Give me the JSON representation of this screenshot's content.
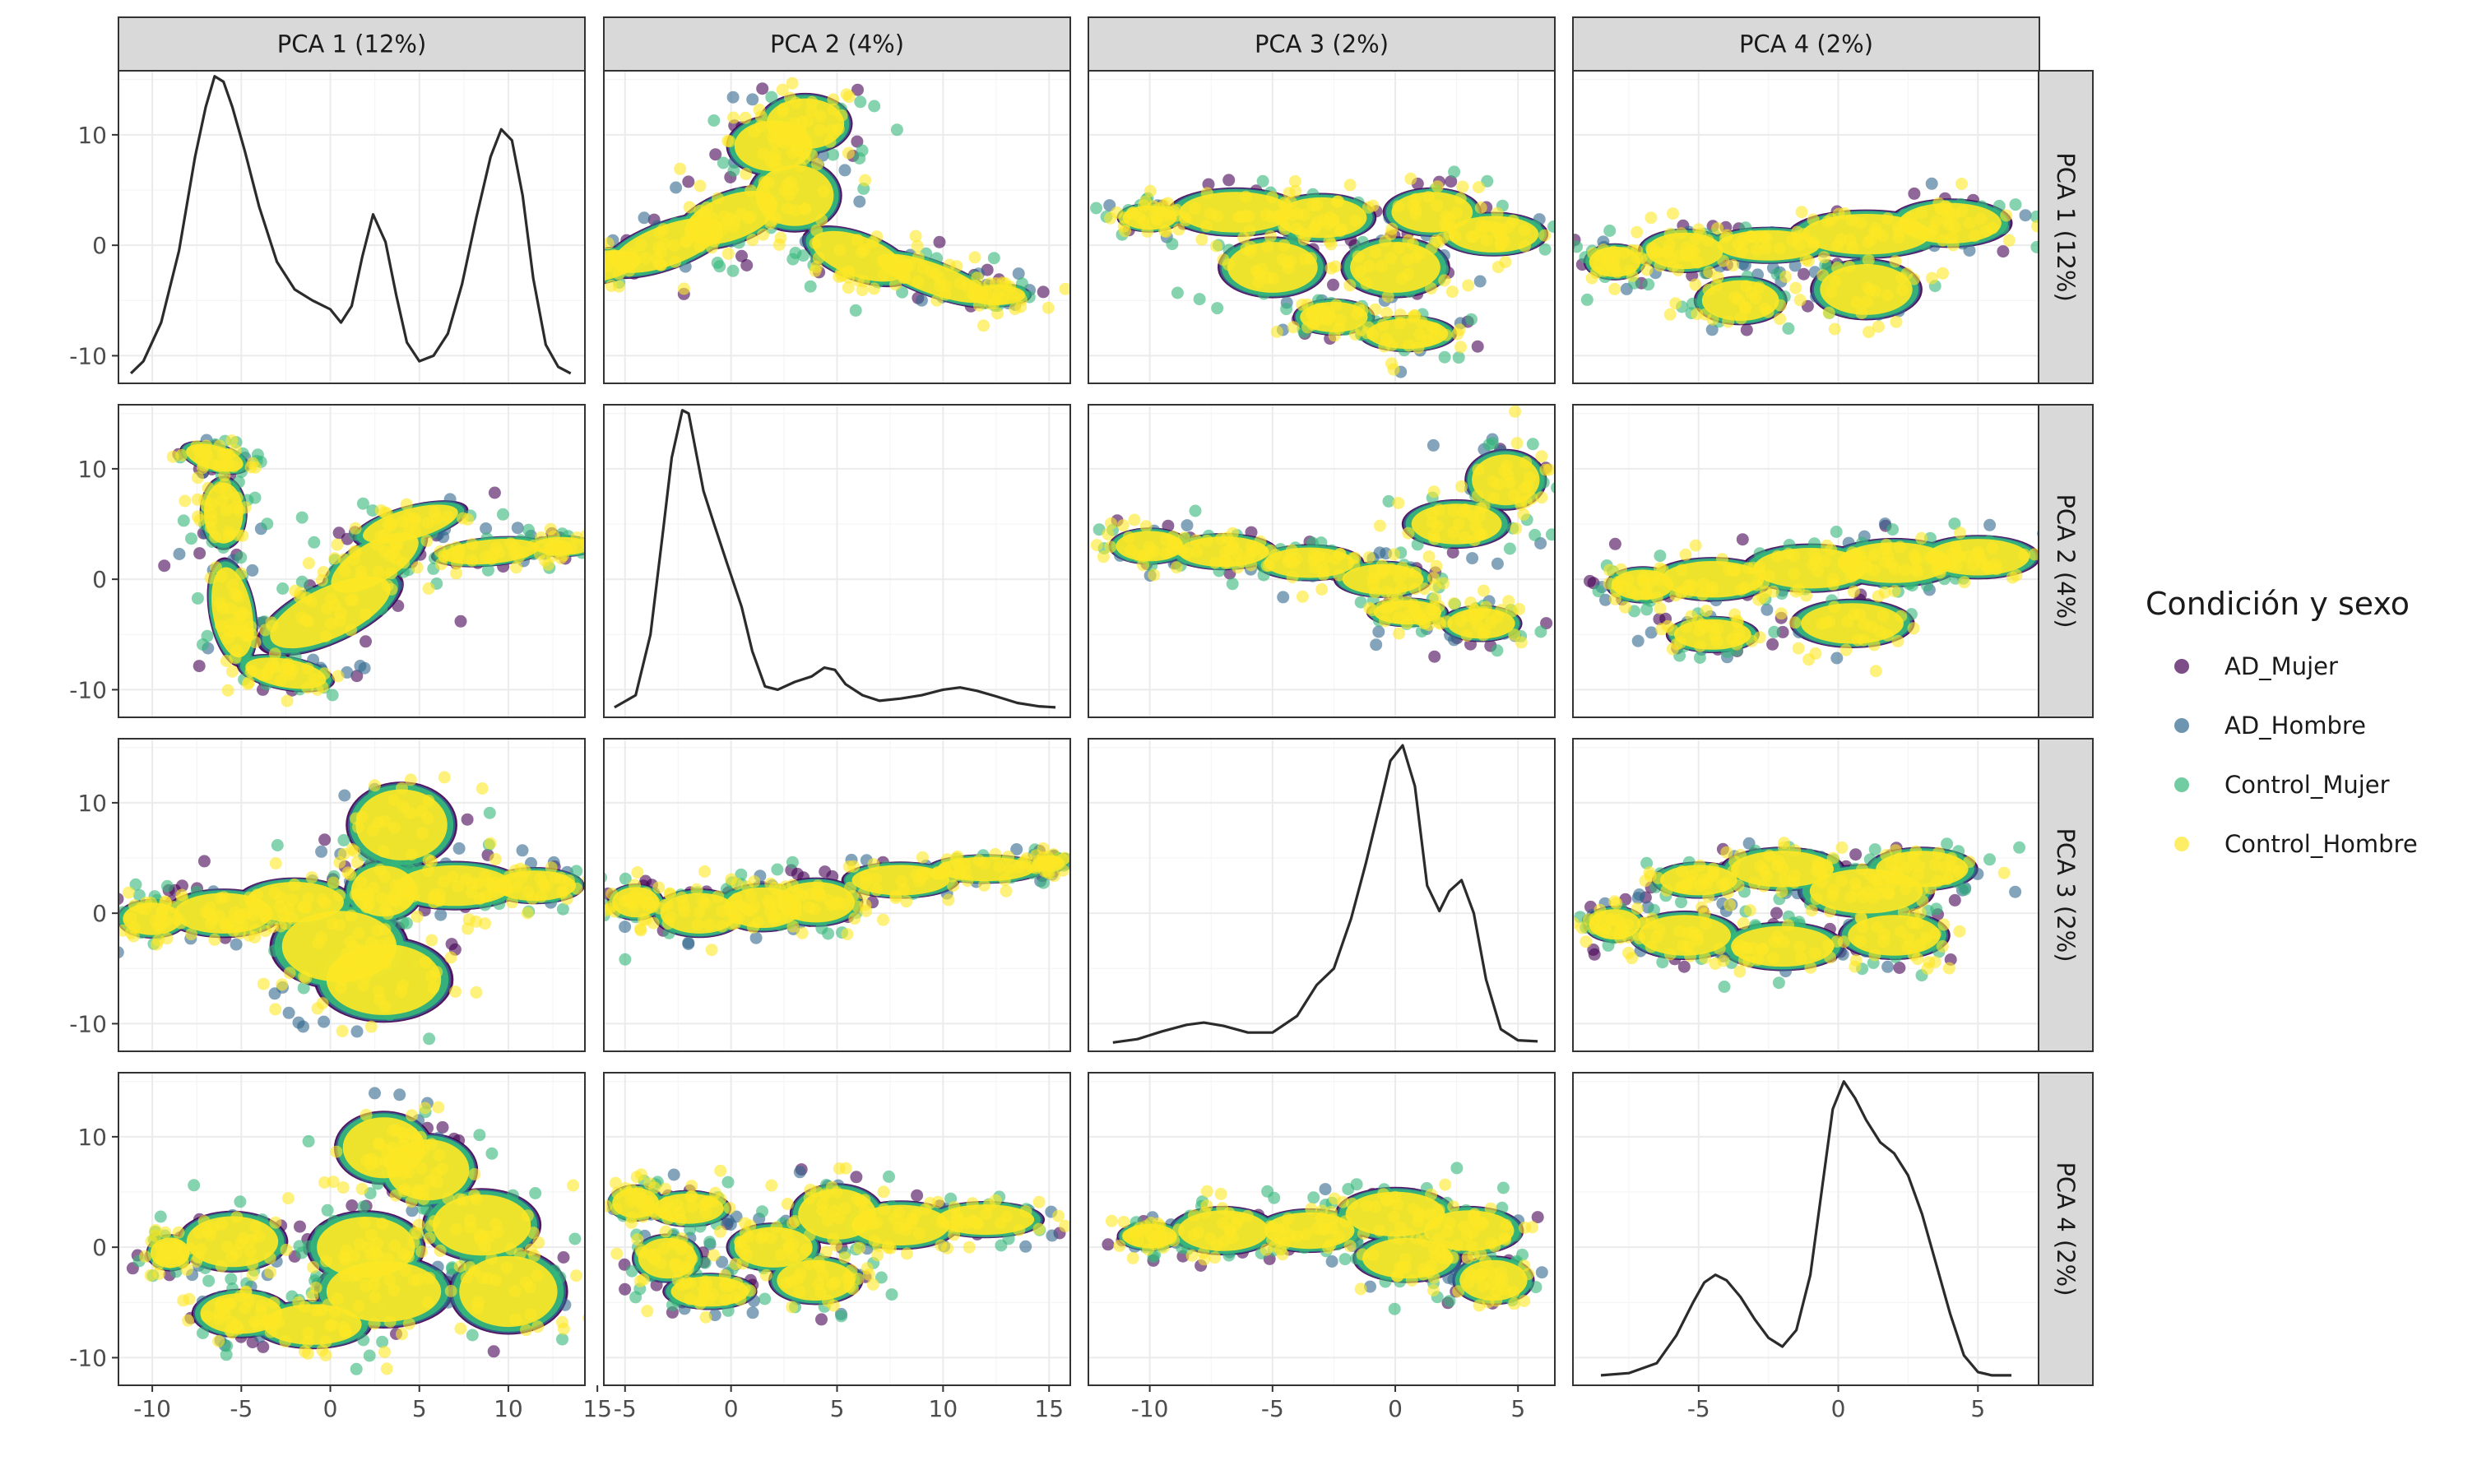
{
  "chart_data": {
    "type": "scatter",
    "subtype": "pairs-matrix",
    "variables": [
      {
        "label": "PCA 1 (12%)",
        "xlim": [
          -11.9,
          14.3
        ],
        "xticks": [
          -10,
          -5,
          0,
          5,
          10,
          15
        ],
        "xtick_labels": [
          "-10",
          "-5",
          "0",
          "5",
          "10",
          "15"
        ]
      },
      {
        "label": "PCA 2 (4%)",
        "xlim": [
          -6.0,
          16.0
        ],
        "xticks": [
          -5,
          0,
          5,
          10,
          15
        ],
        "xtick_labels": [
          "-5",
          "0",
          "5",
          "10",
          "15"
        ]
      },
      {
        "label": "PCA 3 (2%)",
        "xlim": [
          -12.5,
          6.5
        ],
        "xticks": [
          -10,
          -5,
          0,
          5
        ],
        "xtick_labels": [
          "-10",
          "-5",
          "0",
          "5"
        ]
      },
      {
        "label": "PCA 4 (2%)",
        "xlim": [
          -9.5,
          7.2
        ],
        "xticks": [
          -5,
          0,
          5
        ],
        "xtick_labels": [
          "-5",
          "0",
          "5"
        ]
      }
    ],
    "row_ylims": [
      [
        -12.5,
        15.8
      ],
      [
        -12.5,
        15.8
      ],
      [
        -12.5,
        15.8
      ],
      [
        -12.5,
        15.8
      ]
    ],
    "yticks": [
      -10,
      0,
      10
    ],
    "ytick_labels": [
      "-10",
      "0",
      "10"
    ],
    "legend": {
      "title": "Condición y sexo",
      "position": "right",
      "entries": [
        {
          "name": "AD_Mujer",
          "color": "#440154"
        },
        {
          "name": "AD_Hombre",
          "color": "#31688E"
        },
        {
          "name": "Control_Mujer",
          "color": "#35B779"
        },
        {
          "name": "Control_Hombre",
          "color": "#FDE725"
        }
      ]
    },
    "draw_order": [
      "AD_Mujer",
      "AD_Hombre",
      "Control_Mujer",
      "Control_Hombre"
    ],
    "colors": {
      "panel_border": "#333333",
      "strip_fill": "#D9D9D9",
      "grid_major": "#EBEBEB",
      "grid_minor": "#F5F5F5",
      "density_line": "#2B2B2B"
    },
    "grid": true,
    "diagonal_density": [
      {
        "variable": "PCA 1 (12%)",
        "x": [
          -11.2,
          -10.5,
          -9.5,
          -8.5,
          -7.6,
          -7.0,
          -6.5,
          -6.0,
          -5.5,
          -4.8,
          -4.0,
          -3.0,
          -2.0,
          -1.0,
          0.0,
          0.6,
          1.2,
          1.8,
          2.4,
          3.1,
          3.7,
          4.3,
          5.0,
          5.8,
          6.6,
          7.4,
          8.2,
          9.0,
          9.6,
          10.2,
          10.8,
          11.4,
          12.1,
          12.8,
          13.5
        ],
        "y": [
          -11.6,
          -10.5,
          -7.0,
          -0.5,
          8.0,
          12.5,
          15.3,
          14.8,
          12.5,
          8.5,
          3.5,
          -1.5,
          -4.0,
          -5.0,
          -5.8,
          -7.0,
          -5.5,
          -1.0,
          2.8,
          0.3,
          -4.5,
          -8.8,
          -10.5,
          -10.0,
          -8.0,
          -3.5,
          2.5,
          8.0,
          10.5,
          9.5,
          4.5,
          -3.0,
          -9.0,
          -11.0,
          -11.6
        ]
      },
      {
        "variable": "PCA 2 (4%)",
        "x": [
          -5.5,
          -4.5,
          -3.8,
          -3.2,
          -2.8,
          -2.3,
          -2.0,
          -1.7,
          -1.3,
          -0.8,
          -0.2,
          0.5,
          1.0,
          1.6,
          2.2,
          3.0,
          3.8,
          4.4,
          4.9,
          5.4,
          6.2,
          7.0,
          8.0,
          9.0,
          10.0,
          10.8,
          11.6,
          12.5,
          13.5,
          14.5,
          15.3
        ],
        "y": [
          -11.6,
          -10.5,
          -5.0,
          4.5,
          11.0,
          15.3,
          15.0,
          12.0,
          8.0,
          5.0,
          1.5,
          -2.5,
          -6.5,
          -9.7,
          -10.0,
          -9.3,
          -8.8,
          -8.0,
          -8.2,
          -9.5,
          -10.5,
          -11.0,
          -10.8,
          -10.5,
          -10.0,
          -9.8,
          -10.1,
          -10.6,
          -11.2,
          -11.5,
          -11.6
        ]
      },
      {
        "variable": "PCA 3 (2%)",
        "x": [
          -11.5,
          -10.5,
          -9.5,
          -8.5,
          -7.8,
          -7.0,
          -6.0,
          -5.0,
          -4.0,
          -3.2,
          -2.5,
          -1.8,
          -1.2,
          -0.6,
          -0.2,
          0.3,
          0.8,
          1.3,
          1.8,
          2.2,
          2.7,
          3.2,
          3.7,
          4.3,
          5.0,
          5.8
        ],
        "y": [
          -11.7,
          -11.4,
          -10.7,
          -10.1,
          -9.9,
          -10.2,
          -10.8,
          -10.8,
          -9.3,
          -6.5,
          -5.0,
          -0.5,
          4.5,
          10.0,
          13.8,
          15.2,
          11.5,
          2.5,
          0.2,
          2.0,
          3.0,
          0.0,
          -6.0,
          -10.5,
          -11.5,
          -11.6
        ]
      },
      {
        "variable": "PCA 4 (2%)",
        "x": [
          -8.5,
          -7.5,
          -6.5,
          -5.8,
          -5.2,
          -4.8,
          -4.4,
          -4.0,
          -3.5,
          -3.0,
          -2.5,
          -2.0,
          -1.5,
          -1.0,
          -0.6,
          -0.2,
          0.2,
          0.6,
          1.0,
          1.5,
          2.0,
          2.5,
          3.0,
          3.5,
          4.0,
          4.5,
          5.0,
          5.5,
          6.2
        ],
        "y": [
          -11.6,
          -11.4,
          -10.5,
          -8.0,
          -5.0,
          -3.2,
          -2.5,
          -3.0,
          -4.5,
          -6.5,
          -8.2,
          -9.0,
          -7.5,
          -2.5,
          5.0,
          12.5,
          15.0,
          13.5,
          11.5,
          9.5,
          8.5,
          6.5,
          3.0,
          -1.5,
          -6.0,
          -9.8,
          -11.3,
          -11.6,
          -11.6
        ]
      }
    ],
    "scatter_clusters": {
      "note": "each panel holds many thousands of overplotted points; clusters approximate the point clouds in data units (cx, cy, sx, sy, rotation in degrees)",
      "PCA1-PCA2": [
        [
          -6.5,
          11,
          1.8,
          1.2,
          -15
        ],
        [
          -6.0,
          6,
          1.2,
          3.0,
          0
        ],
        [
          -5.5,
          -3,
          1.2,
          4.5,
          10
        ],
        [
          -2.5,
          -8.5,
          2.5,
          1.4,
          -10
        ],
        [
          0,
          -3,
          4.0,
          2.5,
          25
        ],
        [
          2.5,
          1.5,
          3.0,
          2.0,
          30
        ],
        [
          4.5,
          5,
          3.0,
          1.5,
          15
        ],
        [
          9,
          2.5,
          3.0,
          1.2,
          5
        ],
        [
          13,
          3,
          1.8,
          0.9,
          0
        ]
      ],
      "PCA1-PCA3": [
        [
          -10,
          -0.5,
          1.8,
          1.6,
          0
        ],
        [
          -6,
          0,
          3.0,
          2.0,
          0
        ],
        [
          -2,
          1,
          3.0,
          2.0,
          0
        ],
        [
          0.5,
          -3,
          3.5,
          3.5,
          0
        ],
        [
          3,
          -6,
          3.5,
          3.5,
          0
        ],
        [
          3,
          2,
          2.0,
          2.5,
          0
        ],
        [
          4,
          8,
          2.8,
          3.5,
          0
        ],
        [
          7,
          2.5,
          3.5,
          2.0,
          0
        ],
        [
          11.5,
          2.5,
          2.5,
          1.5,
          0
        ]
      ],
      "PCA1-PCA4": [
        [
          -9,
          -0.5,
          1.2,
          1.5,
          0
        ],
        [
          -5.5,
          0.5,
          2.8,
          2.5,
          0
        ],
        [
          -5,
          -6,
          2.5,
          2.0,
          0
        ],
        [
          -1,
          -7,
          3.0,
          2.0,
          0
        ],
        [
          2,
          0,
          3.0,
          3.0,
          0
        ],
        [
          3,
          -4,
          3.5,
          3.0,
          0
        ],
        [
          3,
          9,
          2.5,
          3.0,
          0
        ],
        [
          5.5,
          7,
          2.5,
          3.0,
          0
        ],
        [
          8.5,
          2,
          3.0,
          3.0,
          0
        ],
        [
          10,
          -4,
          3.0,
          3.5,
          0
        ]
      ],
      "PCA2-PCA1": [
        [
          -9.5,
          -3.5,
          1.5,
          1.0,
          0
        ],
        [
          -6.5,
          -2,
          2.5,
          1.5,
          10
        ],
        [
          -3,
          0,
          3.0,
          2.0,
          20
        ],
        [
          0,
          2.5,
          2.5,
          2.2,
          20
        ],
        [
          2,
          9,
          2.0,
          2.5,
          0
        ],
        [
          3.5,
          11,
          2.0,
          2.5,
          0
        ],
        [
          3,
          4.5,
          2.0,
          3.0,
          0
        ],
        [
          6,
          -1,
          2.5,
          2.0,
          -20
        ],
        [
          9.5,
          -3,
          3.0,
          1.5,
          -20
        ],
        [
          12.5,
          -4.5,
          1.5,
          1.0,
          0
        ]
      ],
      "PCA2-PCA3": [
        [
          -4.5,
          1,
          1.2,
          1.5,
          0
        ],
        [
          -1.5,
          0,
          2.0,
          2.0,
          0
        ],
        [
          1.5,
          0.5,
          2.0,
          2.0,
          0
        ],
        [
          4,
          1,
          2.0,
          2.0,
          0
        ],
        [
          8,
          3,
          2.5,
          1.5,
          0
        ],
        [
          12,
          4,
          2.5,
          1.2,
          0
        ],
        [
          15,
          4.5,
          0.8,
          0.8,
          0
        ]
      ],
      "PCA2-PCA4": [
        [
          -4.5,
          4,
          1.2,
          1.5,
          0
        ],
        [
          -2,
          3.5,
          1.8,
          1.5,
          0
        ],
        [
          -3,
          -1,
          1.5,
          2.0,
          0
        ],
        [
          -1,
          -4,
          2.0,
          1.5,
          0
        ],
        [
          2,
          0,
          2.0,
          2.0,
          0
        ],
        [
          4,
          -3,
          2.0,
          2.0,
          0
        ],
        [
          5,
          3,
          2.0,
          2.5,
          0
        ],
        [
          8,
          2,
          2.5,
          2.0,
          0
        ],
        [
          12,
          2.5,
          2.5,
          1.5,
          0
        ]
      ],
      "PCA3-PCA1": [
        [
          -10,
          2.5,
          1.2,
          1.2,
          0
        ],
        [
          -6.5,
          3,
          2.5,
          2.0,
          0
        ],
        [
          -3,
          2.5,
          2.0,
          2.0,
          0
        ],
        [
          -5,
          -2,
          2.0,
          2.5,
          0
        ],
        [
          -2.5,
          -6.5,
          1.5,
          1.5,
          0
        ],
        [
          0,
          -2,
          2.0,
          2.5,
          0
        ],
        [
          1.5,
          3,
          1.8,
          2.0,
          0
        ],
        [
          4,
          1,
          2.0,
          1.8,
          0
        ],
        [
          0.5,
          -8,
          1.8,
          1.5,
          0
        ]
      ],
      "PCA3-PCA2": [
        [
          -10,
          3,
          1.5,
          1.5,
          0
        ],
        [
          -7,
          2.5,
          2.0,
          1.5,
          0
        ],
        [
          -3.5,
          1.5,
          2.0,
          1.5,
          0
        ],
        [
          -0.5,
          0,
          1.8,
          1.5,
          0
        ],
        [
          0.5,
          -3,
          1.5,
          1.2,
          0
        ],
        [
          2.5,
          5,
          2.0,
          2.0,
          0
        ],
        [
          4.5,
          9,
          1.5,
          2.5,
          0
        ],
        [
          3.5,
          -4,
          1.5,
          1.5,
          0
        ]
      ],
      "PCA3-PCA4": [
        [
          -10,
          1,
          1.2,
          1.2,
          0
        ],
        [
          -7,
          1.5,
          2.0,
          2.0,
          0
        ],
        [
          -3.5,
          1.5,
          2.0,
          1.8,
          0
        ],
        [
          0,
          3,
          2.2,
          2.2,
          0
        ],
        [
          0.5,
          -1,
          2.0,
          2.0,
          0
        ],
        [
          3,
          1.5,
          2.0,
          2.0,
          0
        ],
        [
          4,
          -3,
          1.5,
          2.0,
          0
        ]
      ],
      "PCA4-PCA1": [
        [
          -8,
          -1.5,
          1.0,
          1.5,
          0
        ],
        [
          -5.5,
          -0.5,
          1.5,
          1.8,
          0
        ],
        [
          -2.5,
          0,
          2.0,
          1.5,
          0
        ],
        [
          1,
          1,
          2.5,
          2.0,
          0
        ],
        [
          4,
          2,
          2.0,
          2.0,
          0
        ],
        [
          -3.5,
          -5,
          1.5,
          2.0,
          0
        ],
        [
          1,
          -4,
          1.8,
          2.5,
          0
        ]
      ],
      "PCA4-PCA2": [
        [
          -7,
          -0.5,
          1.2,
          1.5,
          0
        ],
        [
          -4.5,
          0,
          2.0,
          1.8,
          0
        ],
        [
          -1,
          1,
          2.2,
          2.0,
          0
        ],
        [
          2,
          1.5,
          2.2,
          2.0,
          0
        ],
        [
          5,
          2,
          2.0,
          1.8,
          0
        ],
        [
          -4.5,
          -5,
          1.5,
          1.5,
          0
        ],
        [
          0.5,
          -4,
          2.0,
          2.0,
          0
        ]
      ],
      "PCA4-PCA3": [
        [
          -8,
          -1,
          1.0,
          1.5,
          0
        ],
        [
          -5.5,
          -2,
          1.8,
          2.0,
          0
        ],
        [
          -2,
          -3,
          2.0,
          2.0,
          0
        ],
        [
          -5,
          3,
          1.5,
          1.5,
          0
        ],
        [
          -2,
          4,
          2.0,
          1.8,
          0
        ],
        [
          1,
          2,
          2.2,
          2.2,
          0
        ],
        [
          3,
          4,
          1.8,
          1.8,
          0
        ],
        [
          2,
          -2,
          1.8,
          2.0,
          0
        ]
      ]
    }
  }
}
